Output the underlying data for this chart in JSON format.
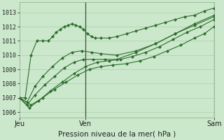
{
  "bg_color": "#cce8cc",
  "grid_color": "#aaccaa",
  "line_color": "#2d6e2d",
  "xlabel": "Pression niveau de la mer( hPa )",
  "xlabel_fontsize": 7.5,
  "yticks": [
    1006,
    1007,
    1008,
    1009,
    1010,
    1011,
    1012,
    1013
  ],
  "ylim": [
    1005.6,
    1013.7
  ],
  "xlim": [
    0,
    1.0
  ],
  "xtick_labels": [
    "Jeu",
    "Ven",
    "Sam"
  ],
  "xtick_positions": [
    0.0,
    0.34,
    1.0
  ],
  "vline_ven": 0.34,
  "vline_sam": 1.0,
  "series": [
    {
      "x": [
        0.0,
        0.03,
        0.06,
        0.09,
        0.12,
        0.15,
        0.17,
        0.19,
        0.21,
        0.23,
        0.25,
        0.27,
        0.29,
        0.31,
        0.33,
        0.35,
        0.37,
        0.39,
        0.42,
        0.46,
        0.5,
        0.55,
        0.6,
        0.65,
        0.7,
        0.75,
        0.8,
        0.85,
        0.9,
        0.95,
        1.0
      ],
      "y": [
        1007.0,
        1007.0,
        1010.0,
        1011.0,
        1011.0,
        1011.0,
        1011.3,
        1011.6,
        1011.8,
        1012.0,
        1012.1,
        1012.2,
        1012.1,
        1012.0,
        1011.8,
        1011.5,
        1011.3,
        1011.2,
        1011.2,
        1011.2,
        1011.3,
        1011.5,
        1011.7,
        1011.9,
        1012.1,
        1012.3,
        1012.5,
        1012.7,
        1012.8,
        1013.1,
        1013.3
      ]
    },
    {
      "x": [
        0.0,
        0.04,
        0.08,
        0.12,
        0.17,
        0.22,
        0.27,
        0.32,
        0.37,
        0.42,
        0.5,
        0.6,
        0.7,
        0.8,
        0.9,
        1.0
      ],
      "y": [
        1007.0,
        1006.7,
        1007.8,
        1008.5,
        1009.2,
        1009.8,
        1010.2,
        1010.3,
        1010.2,
        1010.1,
        1010.0,
        1010.3,
        1010.8,
        1011.5,
        1012.2,
        1012.8
      ]
    },
    {
      "x": [
        0.0,
        0.04,
        0.08,
        0.13,
        0.18,
        0.23,
        0.28,
        0.33,
        0.38,
        0.44,
        0.5,
        0.6,
        0.7,
        0.8,
        0.9,
        1.0
      ],
      "y": [
        1007.0,
        1006.5,
        1007.2,
        1007.9,
        1008.5,
        1009.1,
        1009.5,
        1009.7,
        1009.7,
        1009.7,
        1009.7,
        1010.2,
        1010.8,
        1011.5,
        1012.1,
        1012.7
      ]
    },
    {
      "x": [
        0.0,
        0.05,
        0.1,
        0.16,
        0.22,
        0.28,
        0.34,
        0.4,
        0.46,
        0.52,
        0.58,
        0.65,
        0.72,
        0.79,
        0.86,
        0.93,
        1.0
      ],
      "y": [
        1007.0,
        1006.3,
        1006.8,
        1007.5,
        1008.1,
        1008.7,
        1009.2,
        1009.5,
        1009.6,
        1009.7,
        1009.9,
        1010.2,
        1010.6,
        1011.1,
        1011.6,
        1012.0,
        1012.5
      ]
    },
    {
      "x": [
        0.0,
        0.06,
        0.12,
        0.18,
        0.24,
        0.3,
        0.36,
        0.42,
        0.48,
        0.55,
        0.62,
        0.69,
        0.76,
        0.83,
        0.9,
        0.95,
        1.0
      ],
      "y": [
        1007.0,
        1006.5,
        1007.0,
        1007.6,
        1008.1,
        1008.6,
        1009.0,
        1009.2,
        1009.3,
        1009.4,
        1009.6,
        1009.9,
        1010.3,
        1010.7,
        1011.2,
        1011.5,
        1012.0
      ]
    }
  ]
}
